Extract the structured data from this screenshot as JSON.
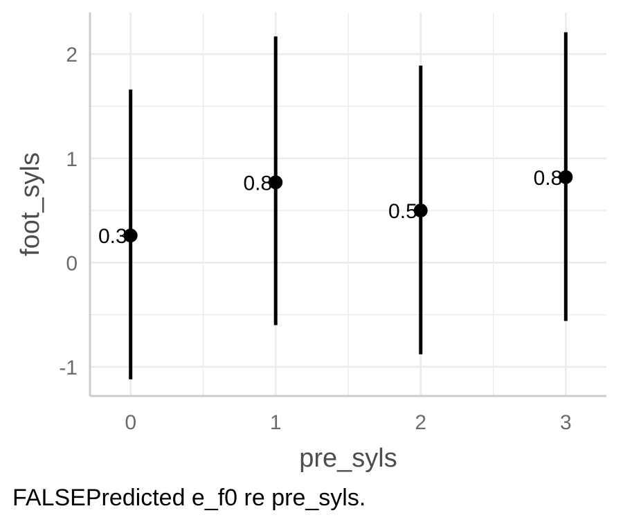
{
  "chart_data": {
    "type": "scatter",
    "subtype": "point-with-errorbars",
    "x": [
      0,
      1,
      2,
      3
    ],
    "y": [
      0.26,
      0.77,
      0.5,
      0.82
    ],
    "lower": [
      -1.12,
      -0.6,
      -0.88,
      -0.56
    ],
    "upper": [
      1.66,
      2.17,
      1.89,
      2.21
    ],
    "point_labels": [
      "0.3",
      "0.8",
      "0.5",
      "0.8"
    ],
    "xlabel": "pre_syls",
    "ylabel": "foot_syls",
    "x_ticks": [
      "0",
      "1",
      "2",
      "3"
    ],
    "y_ticks": [
      -1,
      0,
      1,
      2
    ],
    "y_tick_labels": [
      "-1",
      "0",
      "1",
      "2"
    ],
    "xlim": [
      -0.28,
      3.28
    ],
    "ylim": [
      -1.28,
      2.4
    ],
    "grid": true,
    "legend": "none",
    "colors": {
      "marks": "#000000",
      "grid": "#ebebeb",
      "axis": "#cccccc",
      "tick_text": "#6b6b6b",
      "title_text": "#4d4d4d"
    }
  },
  "caption": "FALSEPredicted e_f0 re pre_syls."
}
